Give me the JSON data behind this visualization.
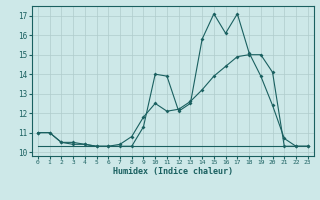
{
  "xlabel": "Humidex (Indice chaleur)",
  "ylabel": "",
  "xlim": [
    -0.5,
    23.5
  ],
  "ylim": [
    9.8,
    17.5
  ],
  "yticks": [
    10,
    11,
    12,
    13,
    14,
    15,
    16,
    17
  ],
  "xticks": [
    0,
    1,
    2,
    3,
    4,
    5,
    6,
    7,
    8,
    9,
    10,
    11,
    12,
    13,
    14,
    15,
    16,
    17,
    18,
    19,
    20,
    21,
    22,
    23
  ],
  "bg_color": "#cde8e8",
  "grid_color": "#b0cccc",
  "line_color": "#1a6060",
  "series1_x": [
    0,
    1,
    2,
    3,
    4,
    5,
    6,
    7,
    8,
    9,
    10,
    11,
    12,
    13,
    14,
    15,
    16,
    17,
    18,
    19,
    20,
    21,
    22,
    23
  ],
  "series1_y": [
    11.0,
    11.0,
    10.5,
    10.5,
    10.4,
    10.3,
    10.3,
    10.3,
    10.3,
    11.3,
    14.0,
    13.9,
    12.1,
    12.5,
    15.8,
    17.1,
    16.1,
    17.1,
    15.1,
    13.9,
    12.4,
    10.7,
    10.3,
    10.3
  ],
  "series2_x": [
    0,
    1,
    2,
    3,
    4,
    5,
    6,
    7,
    8,
    9,
    10,
    11,
    12,
    13,
    14,
    15,
    16,
    17,
    18,
    19,
    20,
    21,
    22,
    23
  ],
  "series2_y": [
    11.0,
    11.0,
    10.5,
    10.4,
    10.4,
    10.3,
    10.3,
    10.4,
    10.8,
    11.8,
    12.5,
    12.1,
    12.2,
    12.6,
    13.2,
    13.9,
    14.4,
    14.9,
    15.0,
    15.0,
    14.1,
    10.3,
    10.3,
    10.3
  ],
  "series3_x": [
    0,
    1,
    2,
    3,
    4,
    5,
    6,
    7,
    8,
    9,
    10,
    11,
    12,
    13,
    14,
    15,
    16,
    17,
    18,
    19,
    20,
    21,
    22,
    23
  ],
  "series3_y": [
    10.3,
    10.3,
    10.3,
    10.3,
    10.3,
    10.3,
    10.3,
    10.3,
    10.3,
    10.3,
    10.3,
    10.3,
    10.3,
    10.3,
    10.3,
    10.3,
    10.3,
    10.3,
    10.3,
    10.3,
    10.3,
    10.3,
    10.3,
    10.3
  ]
}
